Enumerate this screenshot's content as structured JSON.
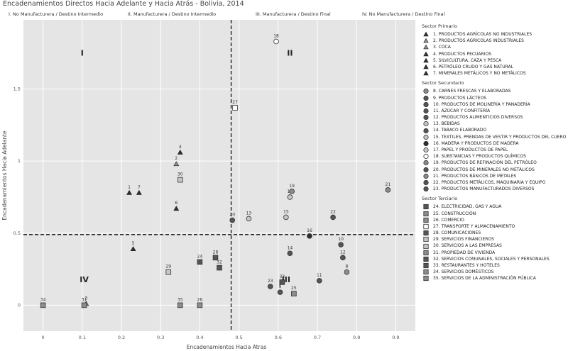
{
  "chart_data": {
    "type": "scatter",
    "title": "Encadenamientos Directos Hacia Adelante y Hacia Atrás - Bolivia, 2014",
    "xlabel": "Encadenamientos Hacia Atras",
    "ylabel": "Encadenamientos Hacia Adelante",
    "xlim": [
      -0.05,
      0.95
    ],
    "ylim": [
      -0.18,
      1.98
    ],
    "xticks": [
      {
        "v": 0,
        "t": "0"
      },
      {
        "v": 0.1,
        "t": "0.1"
      },
      {
        "v": 0.2,
        "t": "0.2"
      },
      {
        "v": 0.3,
        "t": "0.3"
      },
      {
        "v": 0.4,
        "t": "0.4"
      },
      {
        "v": 0.5,
        "t": "0.5"
      },
      {
        "v": 0.6,
        "t": "0.6"
      },
      {
        "v": 0.7,
        "t": "0.7"
      },
      {
        "v": 0.8,
        "t": "0.8"
      },
      {
        "v": 0.9,
        "t": "0.9"
      }
    ],
    "yticks": [
      {
        "v": 0,
        "t": "0"
      },
      {
        "v": 0.5,
        "t": "0.5"
      },
      {
        "v": 1,
        "t": "1"
      },
      {
        "v": 1.5,
        "t": "1.5"
      }
    ],
    "x_threshold": 0.48,
    "y_threshold": 0.49,
    "quadrant_headers": [
      "I. No Manufacturera  / Destino Intermedio",
      "II. Manufacturera / Destino Intermedio",
      "III. Manufacturera / Destino Final",
      "IV. No Manufacturera / Destino Final"
    ],
    "quadrant_labels": [
      {
        "text": "I",
        "x": 0.1,
        "y": 1.75
      },
      {
        "text": "II",
        "x": 0.63,
        "y": 1.75
      },
      {
        "text": "III",
        "x": 0.62,
        "y": 0.18
      },
      {
        "text": "IV",
        "x": 0.105,
        "y": 0.18
      }
    ],
    "colors": {
      "white": "#ffffff",
      "light": "#c6c6c6",
      "mid": "#8c8c8c",
      "dark": "#555555",
      "black": "#2f2f2f"
    },
    "series": [
      {
        "name": "Sector Primario",
        "marker": "triangle",
        "points": [
          {
            "id": "1",
            "name": "1. PRODUCTOS AGRÍCOLAS NO INDUSTRIALES",
            "x": 0.22,
            "y": 0.78,
            "fill": "black"
          },
          {
            "id": "2",
            "name": "2. PRODUCTOS AGRÍCOLAS INDUSTRIALES",
            "x": 0.34,
            "y": 0.98,
            "fill": "mid"
          },
          {
            "id": "3",
            "name": "3. COCA",
            "x": 0.11,
            "y": 0.01,
            "fill": "mid"
          },
          {
            "id": "4",
            "name": "4. PRODUCTOS PECUARIOS",
            "x": 0.35,
            "y": 1.06,
            "fill": "black"
          },
          {
            "id": "5",
            "name": "5. SILVICULTURA, CAZA Y PESCA",
            "x": 0.23,
            "y": 0.39,
            "fill": "black"
          },
          {
            "id": "6",
            "name": "6. PETRÓLEO CRUDO Y GAS NATURAL",
            "x": 0.34,
            "y": 0.67,
            "fill": "black"
          },
          {
            "id": "7",
            "name": "7. MINERALES METÁLICOS Y NO METÁLICOS",
            "x": 0.245,
            "y": 0.78,
            "fill": "black"
          }
        ]
      },
      {
        "name": "Sector Secundario",
        "marker": "circle",
        "points": [
          {
            "id": "8",
            "name": "8. CARNES FRESCAS Y ELABORADAS",
            "x": 0.775,
            "y": 0.23,
            "fill": "mid"
          },
          {
            "id": "9",
            "name": "9. PRODUCTOS LÁCTEOS",
            "x": 0.605,
            "y": 0.09,
            "fill": "dark"
          },
          {
            "id": "10",
            "name": "10. PRODUCTOS DE MOLINERÍA Y PANADERÍA",
            "x": 0.76,
            "y": 0.42,
            "fill": "dark"
          },
          {
            "id": "11",
            "name": "11. AZÚCAR Y CONFITERÍA",
            "x": 0.705,
            "y": 0.17,
            "fill": "dark"
          },
          {
            "id": "12",
            "name": "12. PRODUCTOS ALIMENTICIOS DIVERSOS",
            "x": 0.765,
            "y": 0.33,
            "fill": "dark"
          },
          {
            "id": "13",
            "name": "13. BEBIDAS",
            "x": 0.525,
            "y": 0.6,
            "fill": "light"
          },
          {
            "id": "14",
            "name": "14. TABACO ELABORADO",
            "x": 0.63,
            "y": 0.36,
            "fill": "dark"
          },
          {
            "id": "15",
            "name": "15. TEXTILES, PRENDAS DE VESTIR Y PRODUCTOS DEL CUERO",
            "x": 0.62,
            "y": 0.61,
            "fill": "light"
          },
          {
            "id": "16",
            "name": "16. MADERA Y PRODUCTOS DE MADERA",
            "x": 0.68,
            "y": 0.48,
            "fill": "black"
          },
          {
            "id": "17",
            "name": "17. PAPEL Y PRODUCTOS DE PAPEL",
            "x": 0.63,
            "y": 0.75,
            "fill": "light"
          },
          {
            "id": "18",
            "name": "18. SUBSTANCIAS Y PRODUCTOS QUÍMICOS",
            "x": 0.595,
            "y": 1.83,
            "fill": "white"
          },
          {
            "id": "19",
            "name": "19. PRODUCTOS DE REFINACIÓN DEL PETRÓLEO",
            "x": 0.635,
            "y": 0.79,
            "fill": "mid"
          },
          {
            "id": "20",
            "name": "20. PRODUCTOS DE MINERALES NO METÁLICOS",
            "x": 0.483,
            "y": 0.59,
            "fill": "dark"
          },
          {
            "id": "21",
            "name": "21. PRODUCTOS BÁSICOS DE METALES",
            "x": 0.88,
            "y": 0.8,
            "fill": "mid"
          },
          {
            "id": "22",
            "name": "22. PRODUCTOS METÁLICOS, MAQUINARIA Y EQUIPO",
            "x": 0.74,
            "y": 0.61,
            "fill": "dark"
          },
          {
            "id": "23",
            "name": "23. PRODUCTOS MANUFACTURADOS DIVERSOS",
            "x": 0.58,
            "y": 0.13,
            "fill": "dark"
          }
        ]
      },
      {
        "name": "Sector Terciario",
        "marker": "square",
        "points": [
          {
            "id": "24",
            "name": "24. ELECTRICIDAD, GAS Y AGUA",
            "x": 0.4,
            "y": 0.3,
            "fill": "dark"
          },
          {
            "id": "25",
            "name": "25. CONSTRUCCIÓN",
            "x": 0.64,
            "y": 0.08,
            "fill": "mid"
          },
          {
            "id": "26",
            "name": "26. COMERCIO",
            "x": 0.4,
            "y": 0.0,
            "fill": "mid"
          },
          {
            "id": "27",
            "name": "27. TRANSPORTE Y ALMACENAMIENTO",
            "x": 0.49,
            "y": 1.37,
            "fill": "white"
          },
          {
            "id": "28",
            "name": "28. COMUNICACIONES",
            "x": 0.44,
            "y": 0.33,
            "fill": "dark"
          },
          {
            "id": "29",
            "name": "29. SERVICIOS FINANCIEROS",
            "x": 0.32,
            "y": 0.23,
            "fill": "light"
          },
          {
            "id": "30",
            "name": "30. SERVICIOS A LAS EMPRESAS",
            "x": 0.35,
            "y": 0.87,
            "fill": "light"
          },
          {
            "id": "31",
            "name": "31. PROPIEDAD DE VIVIENDA",
            "x": 0.105,
            "y": 0.0,
            "fill": "mid"
          },
          {
            "id": "32",
            "name": "32. SERVICIOS COMUNALES, SOCIALES Y PERSONALES",
            "x": 0.45,
            "y": 0.26,
            "fill": "dark"
          },
          {
            "id": "33",
            "name": "33. RESTAURANTES Y HOTELES",
            "x": 0.61,
            "y": 0.16,
            "fill": "dark"
          },
          {
            "id": "34",
            "name": "34. SERVICIOS DOMÉSTICOS",
            "x": 0.0,
            "y": 0.0,
            "fill": "mid"
          },
          {
            "id": "35",
            "name": "35. SERVICIOS DE LA ADMINISTRACIÓN PÚBLICA",
            "x": 0.35,
            "y": 0.0,
            "fill": "mid"
          }
        ]
      }
    ]
  }
}
